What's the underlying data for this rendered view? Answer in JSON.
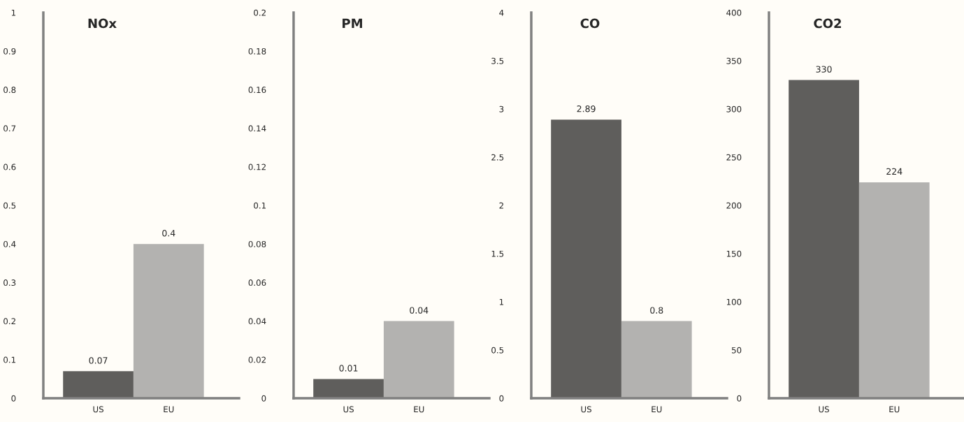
{
  "chart_data": [
    {
      "type": "bar",
      "title": "NOx",
      "categories": [
        "US",
        "EU"
      ],
      "values": [
        0.07,
        0.4
      ],
      "colors": [
        "#5f5e5c",
        "#b3b2b0"
      ],
      "ylim": [
        0,
        1
      ],
      "yticks": [
        0,
        0.1,
        0.2,
        0.3,
        0.4,
        0.5,
        0.6,
        0.7,
        0.8,
        0.9,
        1
      ],
      "data_labels": true,
      "grid": false,
      "legend": false
    },
    {
      "type": "bar",
      "title": "PM",
      "categories": [
        "US",
        "EU"
      ],
      "values": [
        0.01,
        0.04
      ],
      "colors": [
        "#5f5e5c",
        "#b3b2b0"
      ],
      "ylim": [
        0,
        0.2
      ],
      "yticks": [
        0,
        0.02,
        0.04,
        0.06,
        0.08,
        0.1,
        0.12,
        0.14,
        0.16,
        0.18,
        0.2
      ],
      "data_labels": true,
      "grid": false,
      "legend": false
    },
    {
      "type": "bar",
      "title": "CO",
      "categories": [
        "US",
        "EU"
      ],
      "values": [
        2.89,
        0.8
      ],
      "colors": [
        "#5f5e5c",
        "#b3b2b0"
      ],
      "ylim": [
        0,
        4
      ],
      "yticks": [
        0,
        0.5,
        1,
        1.5,
        2,
        2.5,
        3,
        3.5,
        4
      ],
      "data_labels": true,
      "grid": false,
      "legend": false
    },
    {
      "type": "bar",
      "title": "CO2",
      "categories": [
        "US",
        "EU"
      ],
      "values": [
        330,
        224
      ],
      "colors": [
        "#5f5e5c",
        "#b3b2b0"
      ],
      "ylim": [
        0,
        400
      ],
      "yticks": [
        0,
        50,
        100,
        150,
        200,
        250,
        300,
        350,
        400
      ],
      "data_labels": true,
      "grid": false,
      "legend": false
    }
  ]
}
